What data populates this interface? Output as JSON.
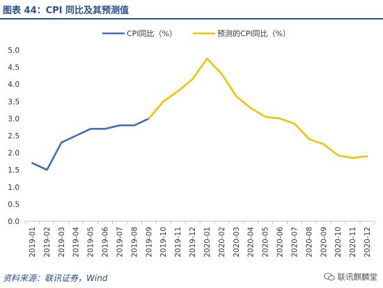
{
  "header": {
    "title": "图表 44：CPI 同比及其预测值"
  },
  "footer": {
    "source": "资料来源：联讯证券，Wind",
    "watermark": "联讯麒麟堂"
  },
  "colors": {
    "actual": "#3c6eb4",
    "forecast": "#f2c200",
    "axis": "#bfbfbf",
    "title": "#2a4d8f"
  },
  "chart_data": {
    "type": "line",
    "title": "",
    "xlabel": "",
    "ylabel": "",
    "ylim": [
      0.0,
      5.0
    ],
    "yticks": [
      "0.0",
      "0.5",
      "1.0",
      "1.5",
      "2.0",
      "2.5",
      "3.0",
      "3.5",
      "4.0",
      "4.5",
      "5.0"
    ],
    "grid": false,
    "legend_position": "top-center",
    "categories": [
      "2019-01",
      "2019-02",
      "2019-03",
      "2019-04",
      "2019-05",
      "2019-06",
      "2019-07",
      "2019-08",
      "2019-09",
      "2019-10",
      "2019-11",
      "2019-12",
      "2020-01",
      "2020-02",
      "2020-03",
      "2020-04",
      "2020-05",
      "2020-06",
      "2020-07",
      "2020-08",
      "2020-09",
      "2020-10",
      "2020-11",
      "2020-12"
    ],
    "series": [
      {
        "name": "CPI同比（%）",
        "color": "#3c6eb4",
        "x": [
          "2019-01",
          "2019-02",
          "2019-03",
          "2019-04",
          "2019-05",
          "2019-06",
          "2019-07",
          "2019-08",
          "2019-09"
        ],
        "values": [
          1.7,
          1.5,
          2.3,
          2.5,
          2.7,
          2.7,
          2.8,
          2.8,
          3.0
        ]
      },
      {
        "name": "预测的CPI同比（%）",
        "color": "#f2c200",
        "x": [
          "2019-09",
          "2019-10",
          "2019-11",
          "2019-12",
          "2020-01",
          "2020-02",
          "2020-03",
          "2020-04",
          "2020-05",
          "2020-06",
          "2020-07",
          "2020-08",
          "2020-09",
          "2020-10",
          "2020-11",
          "2020-12"
        ],
        "values": [
          3.0,
          3.5,
          3.8,
          4.15,
          4.75,
          4.3,
          3.65,
          3.3,
          3.05,
          3.0,
          2.85,
          2.4,
          2.25,
          1.92,
          1.85,
          1.9
        ]
      }
    ]
  }
}
